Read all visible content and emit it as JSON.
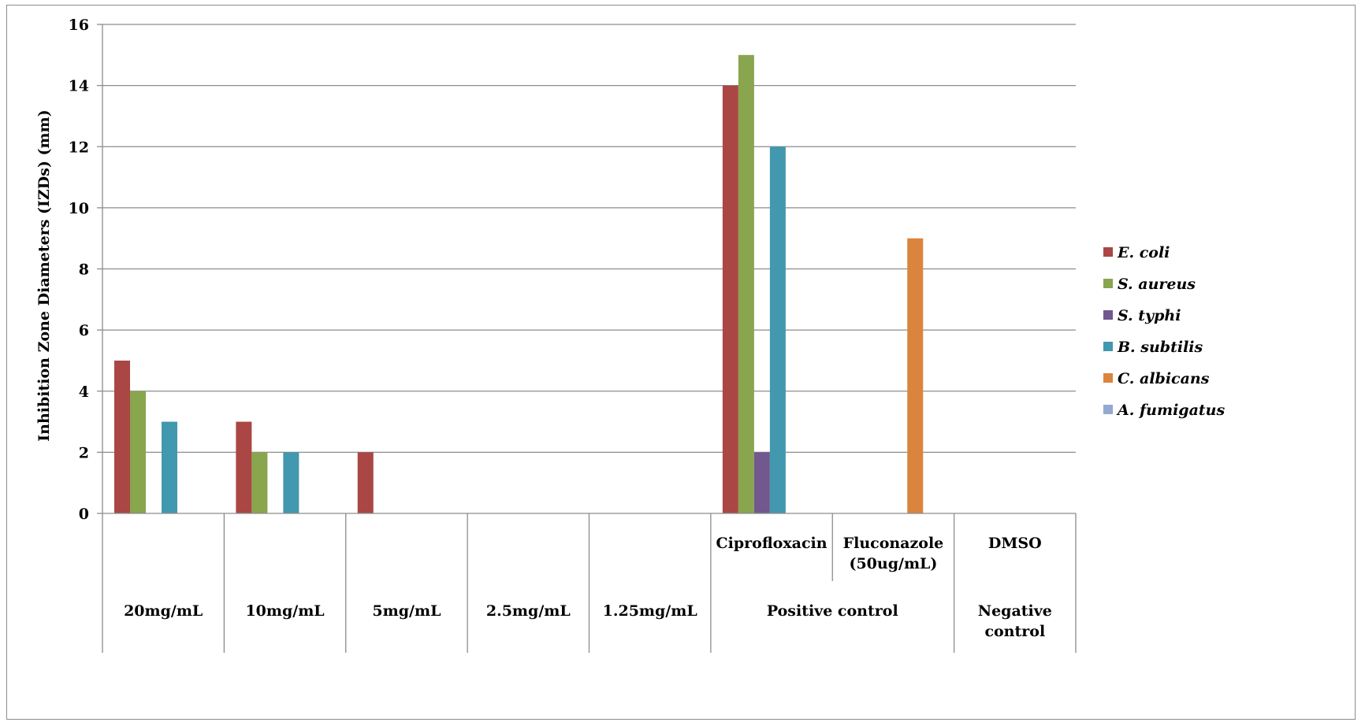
{
  "chart_data": {
    "type": "bar",
    "ylabel": "Inhibition Zone Diameters (IZDs)  (mm)",
    "ylim": [
      0,
      16
    ],
    "yticks": [
      0,
      2,
      4,
      6,
      8,
      10,
      12,
      14,
      16
    ],
    "grid": true,
    "legend_position": "right",
    "categories": [
      "20mg/mL",
      "10mg/mL",
      "5mg/mL",
      "2.5mg/mL",
      "1.25mg/mL",
      "Ciprofloxacin",
      "Fluconazole (50ug/mL)",
      "DMSO"
    ],
    "category_labels": [
      [
        "20mg/mL"
      ],
      [
        "10mg/mL"
      ],
      [
        "5mg/mL"
      ],
      [
        "2.5mg/mL"
      ],
      [
        "1.25mg/mL"
      ],
      [
        "Ciprofloxacin"
      ],
      [
        "Fluconazole",
        "(50ug/mL)"
      ],
      [
        "DMSO"
      ]
    ],
    "groups": [
      {
        "label": [
          "Positive control"
        ],
        "span": [
          5,
          6
        ]
      },
      {
        "label": [
          "Negative",
          "control"
        ],
        "span": [
          7,
          7
        ]
      }
    ],
    "series": [
      {
        "name": "E. coli",
        "color": "#AA4643",
        "values": [
          5,
          3,
          2,
          0,
          0,
          14,
          0,
          0
        ]
      },
      {
        "name": "S. aureus",
        "color": "#89A54E",
        "values": [
          4,
          2,
          0,
          0,
          0,
          15,
          0,
          0
        ]
      },
      {
        "name": "S. typhi",
        "color": "#71588F",
        "values": [
          0,
          0,
          0,
          0,
          0,
          2,
          0,
          0
        ]
      },
      {
        "name": "B. subtilis",
        "color": "#4198AF",
        "values": [
          3,
          2,
          0,
          0,
          0,
          12,
          0,
          0
        ]
      },
      {
        "name": "C. albicans",
        "color": "#DB843D",
        "values": [
          0,
          0,
          0,
          0,
          0,
          0,
          9,
          0
        ]
      },
      {
        "name": "A. fumigatus",
        "color": "#93A9CF",
        "values": [
          0,
          0,
          0,
          0,
          0,
          0,
          0,
          0
        ]
      }
    ]
  }
}
